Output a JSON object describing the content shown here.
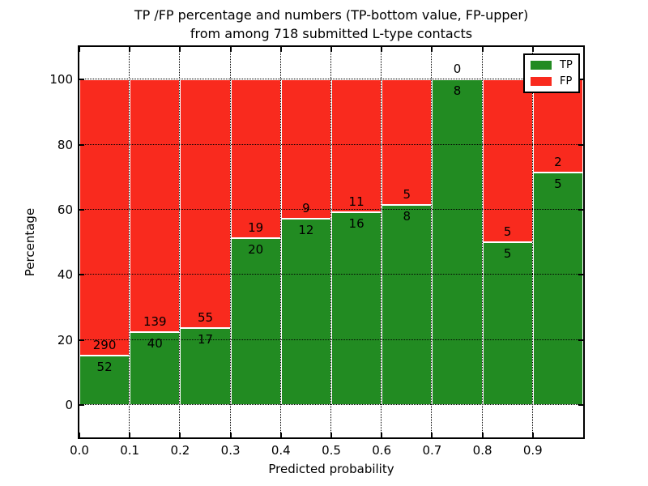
{
  "chart_data": {
    "type": "bar",
    "stacked": true,
    "title_lines": [
      "TP /FP percentage and numbers (TP-bottom value, FP-upper)",
      "from among 718 submitted L-type contacts"
    ],
    "xlabel": "Predicted probability",
    "ylabel": "Percentage",
    "total_contacts": 718,
    "bins": [
      {
        "x_start": 0.0,
        "x_end": 0.1,
        "tp": 52,
        "fp": 290,
        "tp_percent": 15.2
      },
      {
        "x_start": 0.1,
        "x_end": 0.2,
        "tp": 40,
        "fp": 139,
        "tp_percent": 22.3
      },
      {
        "x_start": 0.2,
        "x_end": 0.3,
        "tp": 17,
        "fp": 55,
        "tp_percent": 23.6
      },
      {
        "x_start": 0.3,
        "x_end": 0.4,
        "tp": 20,
        "fp": 19,
        "tp_percent": 51.3
      },
      {
        "x_start": 0.4,
        "x_end": 0.5,
        "tp": 12,
        "fp": 9,
        "tp_percent": 57.1
      },
      {
        "x_start": 0.5,
        "x_end": 0.6,
        "tp": 16,
        "fp": 11,
        "tp_percent": 59.3
      },
      {
        "x_start": 0.6,
        "x_end": 0.7,
        "tp": 8,
        "fp": 5,
        "tp_percent": 61.5
      },
      {
        "x_start": 0.7,
        "x_end": 0.8,
        "tp": 8,
        "fp": 0,
        "tp_percent": 100.0
      },
      {
        "x_start": 0.8,
        "x_end": 0.9,
        "tp": 5,
        "fp": 5,
        "tp_percent": 50.0
      },
      {
        "x_start": 0.9,
        "x_end": 1.0,
        "tp": 5,
        "fp": 2,
        "tp_percent": 71.4
      }
    ],
    "series": [
      {
        "name": "TP",
        "color": "#228b22"
      },
      {
        "name": "FP",
        "color": "#f92a1e"
      }
    ],
    "xticks": [
      "0.0",
      "0.1",
      "0.2",
      "0.3",
      "0.4",
      "0.5",
      "0.6",
      "0.7",
      "0.8",
      "0.9"
    ],
    "yticks": [
      0,
      20,
      40,
      60,
      80,
      100
    ],
    "xlim": [
      0.0,
      1.0
    ],
    "ylim": [
      -10,
      110
    ],
    "bar_total_percent": 100,
    "legend_position": "upper right",
    "grid": {
      "visible": true,
      "style": "dotted",
      "color": "#000000"
    },
    "background": "#ffffff"
  }
}
